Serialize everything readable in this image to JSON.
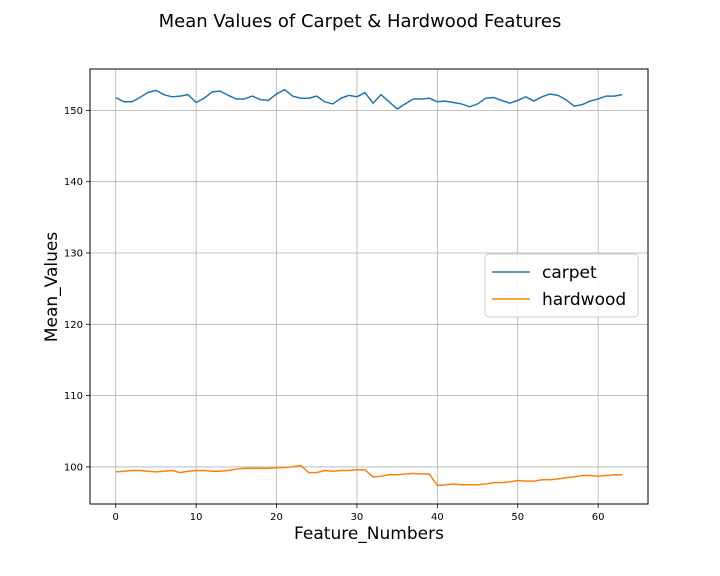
{
  "chart_data": {
    "type": "line",
    "title": "Mean Values of Carpet & Hardwood Features",
    "xlabel": "Feature_Numbers",
    "ylabel": "Mean_Values",
    "xlim": [
      -3.2,
      66.2
    ],
    "ylim": [
      94.8,
      155.8
    ],
    "xticks": [
      0,
      10,
      20,
      30,
      40,
      50,
      60
    ],
    "yticks": [
      100,
      110,
      120,
      130,
      140,
      150
    ],
    "grid": true,
    "legend_position": "center-right",
    "series": [
      {
        "name": "carpet",
        "color": "#1f77b4",
        "x": [
          0,
          1,
          2,
          3,
          4,
          5,
          6,
          7,
          8,
          9,
          10,
          11,
          12,
          13,
          14,
          15,
          16,
          17,
          18,
          19,
          20,
          21,
          22,
          23,
          24,
          25,
          26,
          27,
          28,
          29,
          30,
          31,
          32,
          33,
          34,
          35,
          36,
          37,
          38,
          39,
          40,
          41,
          42,
          43,
          44,
          45,
          46,
          47,
          48,
          49,
          50,
          51,
          52,
          53,
          54,
          55,
          56,
          57,
          58,
          59,
          60,
          61,
          62,
          63
        ],
        "y": [
          151.8,
          151.2,
          151.2,
          151.8,
          152.5,
          152.8,
          152.2,
          151.9,
          152.0,
          152.2,
          151.1,
          151.7,
          152.6,
          152.7,
          152.1,
          151.6,
          151.6,
          152.0,
          151.5,
          151.4,
          152.3,
          152.9,
          152.0,
          151.7,
          151.7,
          152.0,
          151.2,
          150.9,
          151.7,
          152.1,
          151.9,
          152.5,
          151.0,
          152.2,
          151.2,
          150.2,
          150.9,
          151.6,
          151.6,
          151.7,
          151.2,
          151.3,
          151.1,
          150.9,
          150.5,
          150.9,
          151.7,
          151.8,
          151.4,
          151.0,
          151.4,
          151.9,
          151.3,
          151.9,
          152.3,
          152.1,
          151.5,
          150.6,
          150.8,
          151.3,
          151.6,
          152.0,
          152.0,
          152.2
        ]
      },
      {
        "name": "hardwood",
        "color": "#ff7f0e",
        "x": [
          0,
          1,
          2,
          3,
          4,
          5,
          6,
          7,
          8,
          9,
          10,
          11,
          12,
          13,
          14,
          15,
          16,
          17,
          18,
          19,
          20,
          21,
          22,
          23,
          24,
          25,
          26,
          27,
          28,
          29,
          30,
          31,
          32,
          33,
          34,
          35,
          36,
          37,
          38,
          39,
          40,
          41,
          42,
          43,
          44,
          45,
          46,
          47,
          48,
          49,
          50,
          51,
          52,
          53,
          54,
          55,
          56,
          57,
          58,
          59,
          60,
          61,
          62,
          63
        ],
        "y": [
          99.3,
          99.4,
          99.5,
          99.5,
          99.4,
          99.3,
          99.4,
          99.5,
          99.2,
          99.4,
          99.5,
          99.5,
          99.4,
          99.4,
          99.5,
          99.7,
          99.8,
          99.8,
          99.8,
          99.8,
          99.9,
          99.9,
          100.0,
          100.2,
          99.2,
          99.2,
          99.5,
          99.4,
          99.5,
          99.5,
          99.6,
          99.6,
          98.6,
          98.7,
          98.9,
          98.9,
          99.0,
          99.1,
          99.0,
          99.0,
          97.4,
          97.5,
          97.6,
          97.5,
          97.5,
          97.5,
          97.6,
          97.8,
          97.8,
          97.9,
          98.1,
          98.0,
          98.0,
          98.2,
          98.2,
          98.3,
          98.5,
          98.6,
          98.8,
          98.8,
          98.7,
          98.8,
          98.9,
          98.9
        ]
      }
    ]
  }
}
